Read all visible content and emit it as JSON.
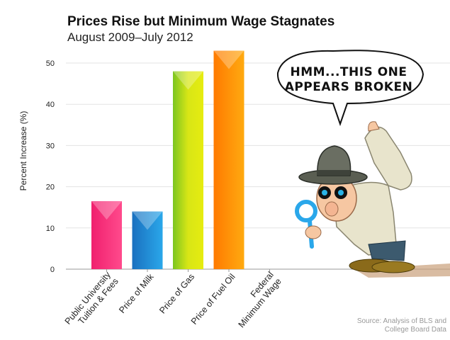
{
  "chart_data": {
    "type": "bar",
    "title": "Prices Rise but Minimum Wage Stagnates",
    "subtitle": "August 2009–July 2012",
    "ylabel": "Percent Increase (%)",
    "xlabel": "",
    "ylim": [
      0,
      50
    ],
    "yticks": [
      0,
      10,
      20,
      30,
      40,
      50
    ],
    "categories": [
      [
        "Public University",
        "Tuition & Fees"
      ],
      [
        "Price of Milk"
      ],
      [
        "Price of Gas"
      ],
      [
        "Price of Fuel Oil"
      ],
      [
        "Federal",
        "Minimum Wage"
      ]
    ],
    "values": [
      16.5,
      14,
      48,
      53,
      0
    ],
    "colors": [
      "#f0206e",
      "#1e90d6",
      "#b8d81e",
      "#ff9a00",
      "#cccccc"
    ],
    "grid": true
  },
  "source": {
    "line1": "Source:  Analysis of BLS and",
    "line2": "College Board Data"
  },
  "cartoon": {
    "speech_line1": "HMM...THIS ONE",
    "speech_line2": "APPEARS BROKEN",
    "figure_icon": "detective-with-magnifying-glass-icon"
  }
}
